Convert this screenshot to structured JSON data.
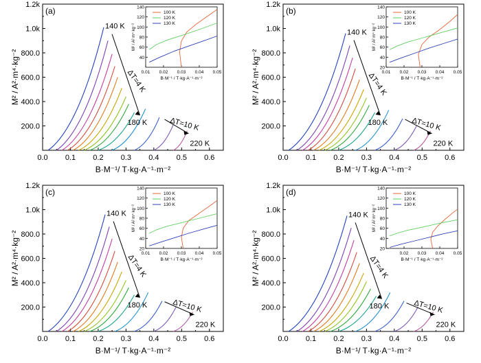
{
  "colors": {
    "axis": "#000000",
    "palette": [
      "#1f3fbf",
      "#7b3fb5",
      "#c23aa0",
      "#d24b3a",
      "#e07a1f",
      "#c9a400",
      "#8fc31f",
      "#2aa838",
      "#17a589",
      "#1f8fd0",
      "#3a5fcd",
      "#7a5ab8",
      "#b85aa0",
      "#d9543f",
      "#e39a2b"
    ],
    "inset": {
      "100 K": "#e4663a",
      "120 K": "#5fcf5f",
      "130 K": "#2f3fb5"
    }
  },
  "arrows": {
    "dt4": "ΔT=4 K",
    "dt10": "ΔT=10 K"
  },
  "chart_data": [
    {
      "panel": "(a)",
      "type": "line",
      "xlabel": "B·M⁻¹/ T·kg·A⁻¹·m⁻²",
      "ylabel": "M² / A²·m⁴·kg⁻²",
      "xlim": [
        0,
        0.65
      ],
      "ylim": [
        0,
        1200
      ],
      "x_ticks": [
        "0.0",
        "0.1",
        "0.2",
        "0.3",
        "0.4",
        "0.5",
        "0.6"
      ],
      "y_ticks": [
        "200.0",
        "400.0",
        "600.0",
        "800.0",
        "1.0k",
        "1.2k"
      ],
      "temp_labels": [
        "140 K",
        "180 K",
        "220 K"
      ],
      "series": [
        {
          "x": [
            0.02,
            0.22
          ],
          "y": [
            0,
            1010
          ]
        },
        {
          "x": [
            0.05,
            0.235
          ],
          "y": [
            0,
            900
          ]
        },
        {
          "x": [
            0.07,
            0.25
          ],
          "y": [
            0,
            790
          ]
        },
        {
          "x": [
            0.09,
            0.26
          ],
          "y": [
            0,
            690
          ]
        },
        {
          "x": [
            0.11,
            0.27
          ],
          "y": [
            0,
            600
          ]
        },
        {
          "x": [
            0.13,
            0.285
          ],
          "y": [
            0,
            510
          ]
        },
        {
          "x": [
            0.15,
            0.3
          ],
          "y": [
            0,
            440
          ]
        },
        {
          "x": [
            0.17,
            0.31
          ],
          "y": [
            0,
            380
          ]
        },
        {
          "x": [
            0.2,
            0.33
          ],
          "y": [
            0,
            310
          ]
        },
        {
          "x": [
            0.25,
            0.37
          ],
          "y": [
            0,
            340
          ]
        },
        {
          "x": [
            0.33,
            0.42
          ],
          "y": [
            0,
            270
          ]
        },
        {
          "x": [
            0.4,
            0.47
          ],
          "y": [
            0,
            210
          ]
        },
        {
          "x": [
            0.47,
            0.52
          ],
          "y": [
            0,
            160
          ]
        }
      ],
      "inset": {
        "xlim": [
          0.01,
          0.05
        ],
        "ylim": [
          20,
          140
        ],
        "x_ticks": [
          "0.01",
          "0.02",
          "0.03",
          "0.04",
          "0.05"
        ],
        "y_ticks": [
          "40",
          "60",
          "80",
          "100",
          "120",
          "140"
        ],
        "ylabel": "M² / A² m⁴ kg⁻²",
        "xlabel": "B·M⁻¹ / T·kg·A⁻¹·m⁻²",
        "legend": [
          "100 K",
          "120 K",
          "130 K"
        ],
        "series": [
          {
            "name": "100 K",
            "x": [
              0.03,
              0.029,
              0.03,
              0.033,
              0.038,
              0.044,
              0.05
            ],
            "y": [
              20,
              50,
              72,
              90,
              105,
              120,
              135
            ]
          },
          {
            "name": "120 K",
            "x": [
              0.012,
              0.016,
              0.022,
              0.03,
              0.04,
              0.05
            ],
            "y": [
              55,
              65,
              74,
              83,
              95,
              108
            ]
          },
          {
            "name": "130 K",
            "x": [
              0.012,
              0.018,
              0.026,
              0.034,
              0.042,
              0.05
            ],
            "y": [
              30,
              40,
              52,
              62,
              72,
              82
            ]
          }
        ]
      }
    },
    {
      "panel": "(b)",
      "type": "line",
      "xlabel": "B·M⁻¹/ T·kg·A⁻¹·m⁻²",
      "ylabel": "M² / A²·m⁴·kg⁻²",
      "xlim": [
        0,
        0.65
      ],
      "ylim": [
        0,
        1200
      ],
      "x_ticks": [
        "0.0",
        "0.1",
        "0.2",
        "0.3",
        "0.4",
        "0.5",
        "0.6"
      ],
      "y_ticks": [
        "200.0",
        "400.0",
        "600.0",
        "800.0",
        "1.0k",
        "1.2k"
      ],
      "temp_labels": [
        "140 K",
        "180 K",
        "220 K"
      ],
      "series": [
        {
          "x": [
            0.02,
            0.225
          ],
          "y": [
            0,
            960
          ]
        },
        {
          "x": [
            0.05,
            0.24
          ],
          "y": [
            0,
            860
          ]
        },
        {
          "x": [
            0.07,
            0.25
          ],
          "y": [
            0,
            760
          ]
        },
        {
          "x": [
            0.09,
            0.26
          ],
          "y": [
            0,
            670
          ]
        },
        {
          "x": [
            0.11,
            0.275
          ],
          "y": [
            0,
            580
          ]
        },
        {
          "x": [
            0.13,
            0.29
          ],
          "y": [
            0,
            500
          ]
        },
        {
          "x": [
            0.15,
            0.3
          ],
          "y": [
            0,
            430
          ]
        },
        {
          "x": [
            0.17,
            0.31
          ],
          "y": [
            0,
            370
          ]
        },
        {
          "x": [
            0.2,
            0.33
          ],
          "y": [
            0,
            310
          ]
        },
        {
          "x": [
            0.26,
            0.38
          ],
          "y": [
            0,
            330
          ]
        },
        {
          "x": [
            0.33,
            0.43
          ],
          "y": [
            0,
            260
          ]
        },
        {
          "x": [
            0.4,
            0.48
          ],
          "y": [
            0,
            200
          ]
        },
        {
          "x": [
            0.47,
            0.53
          ],
          "y": [
            0,
            160
          ]
        }
      ],
      "inset": {
        "xlim": [
          0.01,
          0.05
        ],
        "ylim": [
          20,
          140
        ],
        "x_ticks": [
          "0.01",
          "0.02",
          "0.03",
          "0.04",
          "0.05"
        ],
        "y_ticks": [
          "20",
          "40",
          "60",
          "80",
          "100",
          "120",
          "140"
        ],
        "ylabel": "M² / A² m⁴ kg⁻²",
        "xlabel": "B·M⁻¹ / T·kg·A⁻¹·m⁻²",
        "legend": [
          "100 K",
          "120 K",
          "130 K"
        ],
        "series": [
          {
            "name": "100 K",
            "x": [
              0.029,
              0.028,
              0.03,
              0.034,
              0.04,
              0.046,
              0.05
            ],
            "y": [
              20,
              45,
              65,
              80,
              95,
              112,
              125
            ]
          },
          {
            "name": "120 K",
            "x": [
              0.012,
              0.016,
              0.022,
              0.03,
              0.04,
              0.05
            ],
            "y": [
              55,
              62,
              70,
              78,
              88,
              98
            ]
          },
          {
            "name": "130 K",
            "x": [
              0.012,
              0.018,
              0.026,
              0.034,
              0.042,
              0.05
            ],
            "y": [
              30,
              38,
              48,
              58,
              67,
              76
            ]
          }
        ]
      }
    },
    {
      "panel": "(c)",
      "type": "line",
      "xlabel": "B·M⁻¹/ T·kg·A⁻¹·m⁻²",
      "ylabel": "M² / A²·m⁴·kg⁻²",
      "xlim": [
        0,
        0.65
      ],
      "ylim": [
        0,
        1200
      ],
      "x_ticks": [
        "0.0",
        "0.1",
        "0.2",
        "0.3",
        "0.4",
        "0.5",
        "0.6"
      ],
      "y_ticks": [
        "200.0",
        "400.0",
        "600.0",
        "800.0",
        "1.0k",
        "1.2k"
      ],
      "temp_labels": [
        "140 K",
        "180 K",
        "220 K"
      ],
      "series": [
        {
          "x": [
            0.02,
            0.225
          ],
          "y": [
            0,
            960
          ]
        },
        {
          "x": [
            0.05,
            0.24
          ],
          "y": [
            0,
            860
          ]
        },
        {
          "x": [
            0.07,
            0.25
          ],
          "y": [
            0,
            760
          ]
        },
        {
          "x": [
            0.09,
            0.26
          ],
          "y": [
            0,
            660
          ]
        },
        {
          "x": [
            0.11,
            0.27
          ],
          "y": [
            0,
            570
          ]
        },
        {
          "x": [
            0.13,
            0.285
          ],
          "y": [
            0,
            490
          ]
        },
        {
          "x": [
            0.15,
            0.3
          ],
          "y": [
            0,
            420
          ]
        },
        {
          "x": [
            0.17,
            0.31
          ],
          "y": [
            0,
            360
          ]
        },
        {
          "x": [
            0.2,
            0.33
          ],
          "y": [
            0,
            300
          ]
        },
        {
          "x": [
            0.26,
            0.38
          ],
          "y": [
            0,
            320
          ]
        },
        {
          "x": [
            0.33,
            0.43
          ],
          "y": [
            0,
            250
          ]
        },
        {
          "x": [
            0.4,
            0.48
          ],
          "y": [
            0,
            200
          ]
        },
        {
          "x": [
            0.47,
            0.54
          ],
          "y": [
            0,
            160
          ]
        }
      ],
      "inset": {
        "xlim": [
          0.01,
          0.05
        ],
        "ylim": [
          20,
          140
        ],
        "x_ticks": [
          "0.01",
          "0.02",
          "0.03",
          "0.04",
          "0.05"
        ],
        "y_ticks": [
          "20",
          "40",
          "60",
          "80",
          "100",
          "120",
          "140"
        ],
        "ylabel": "M² / A² m⁴ kg⁻²",
        "xlabel": "B·M⁻¹ / T·kg·A⁻¹·m⁻²",
        "legend": [
          "100 K",
          "120 K",
          "130 K"
        ],
        "series": [
          {
            "name": "100 K",
            "x": [
              0.031,
              0.03,
              0.031,
              0.034,
              0.04,
              0.046,
              0.05
            ],
            "y": [
              20,
              42,
              60,
              75,
              90,
              105,
              115
            ]
          },
          {
            "name": "120 K",
            "x": [
              0.012,
              0.016,
              0.022,
              0.03,
              0.04,
              0.05
            ],
            "y": [
              50,
              57,
              64,
              71,
              80,
              89
            ]
          },
          {
            "name": "130 K",
            "x": [
              0.012,
              0.018,
              0.026,
              0.034,
              0.042,
              0.05
            ],
            "y": [
              25,
              32,
              41,
              50,
              58,
              66
            ]
          }
        ]
      }
    },
    {
      "panel": "(d)",
      "type": "line",
      "xlabel": "B·M⁻¹/ T·kg·A⁻¹·m⁻²",
      "ylabel": "M² / A²·m⁴·kg⁻²",
      "xlim": [
        0,
        0.65
      ],
      "ylim": [
        0,
        1200
      ],
      "x_ticks": [
        "0.0",
        "0.1",
        "0.2",
        "0.3",
        "0.4",
        "0.5",
        "0.6"
      ],
      "y_ticks": [
        "200.0",
        "400.0",
        "600.0",
        "800.0",
        "1.0k",
        "1.2k"
      ],
      "temp_labels": [
        "140 K",
        "180 K",
        "220 K"
      ],
      "series": [
        {
          "x": [
            0.02,
            0.23
          ],
          "y": [
            0,
            950
          ]
        },
        {
          "x": [
            0.05,
            0.245
          ],
          "y": [
            0,
            850
          ]
        },
        {
          "x": [
            0.07,
            0.255
          ],
          "y": [
            0,
            750
          ]
        },
        {
          "x": [
            0.09,
            0.265
          ],
          "y": [
            0,
            650
          ]
        },
        {
          "x": [
            0.11,
            0.275
          ],
          "y": [
            0,
            560
          ]
        },
        {
          "x": [
            0.13,
            0.29
          ],
          "y": [
            0,
            480
          ]
        },
        {
          "x": [
            0.15,
            0.3
          ],
          "y": [
            0,
            410
          ]
        },
        {
          "x": [
            0.17,
            0.315
          ],
          "y": [
            0,
            350
          ]
        },
        {
          "x": [
            0.2,
            0.335
          ],
          "y": [
            0,
            290
          ]
        },
        {
          "x": [
            0.26,
            0.385
          ],
          "y": [
            0,
            320
          ]
        },
        {
          "x": [
            0.33,
            0.435
          ],
          "y": [
            0,
            250
          ]
        },
        {
          "x": [
            0.4,
            0.485
          ],
          "y": [
            0,
            200
          ]
        },
        {
          "x": [
            0.47,
            0.54
          ],
          "y": [
            0,
            160
          ]
        }
      ],
      "inset": {
        "xlim": [
          0.01,
          0.05
        ],
        "ylim": [
          20,
          140
        ],
        "x_ticks": [
          "0.02",
          "0.03",
          "0.04",
          "0.05"
        ],
        "y_ticks": [
          "20",
          "40",
          "60",
          "80",
          "100",
          "120",
          "140"
        ],
        "ylabel": "M² / A² m⁴ kg⁻²",
        "xlabel": "B·M⁻¹ / T·kg·A⁻¹·m⁻²",
        "legend": [
          "100 K",
          "120 K",
          "130 K"
        ],
        "series": [
          {
            "name": "100 K",
            "x": [
              0.036,
              0.035,
              0.036,
              0.039,
              0.043,
              0.047,
              0.05
            ],
            "y": [
              20,
              38,
              52,
              65,
              78,
              90,
              98
            ]
          },
          {
            "name": "120 K",
            "x": [
              0.012,
              0.016,
              0.022,
              0.03,
              0.04,
              0.05
            ],
            "y": [
              45,
              50,
              56,
              62,
              70,
              77
            ]
          },
          {
            "name": "130 K",
            "x": [
              0.012,
              0.018,
              0.026,
              0.034,
              0.042,
              0.05
            ],
            "y": [
              22,
              28,
              35,
              42,
              49,
              55
            ]
          }
        ]
      }
    }
  ]
}
